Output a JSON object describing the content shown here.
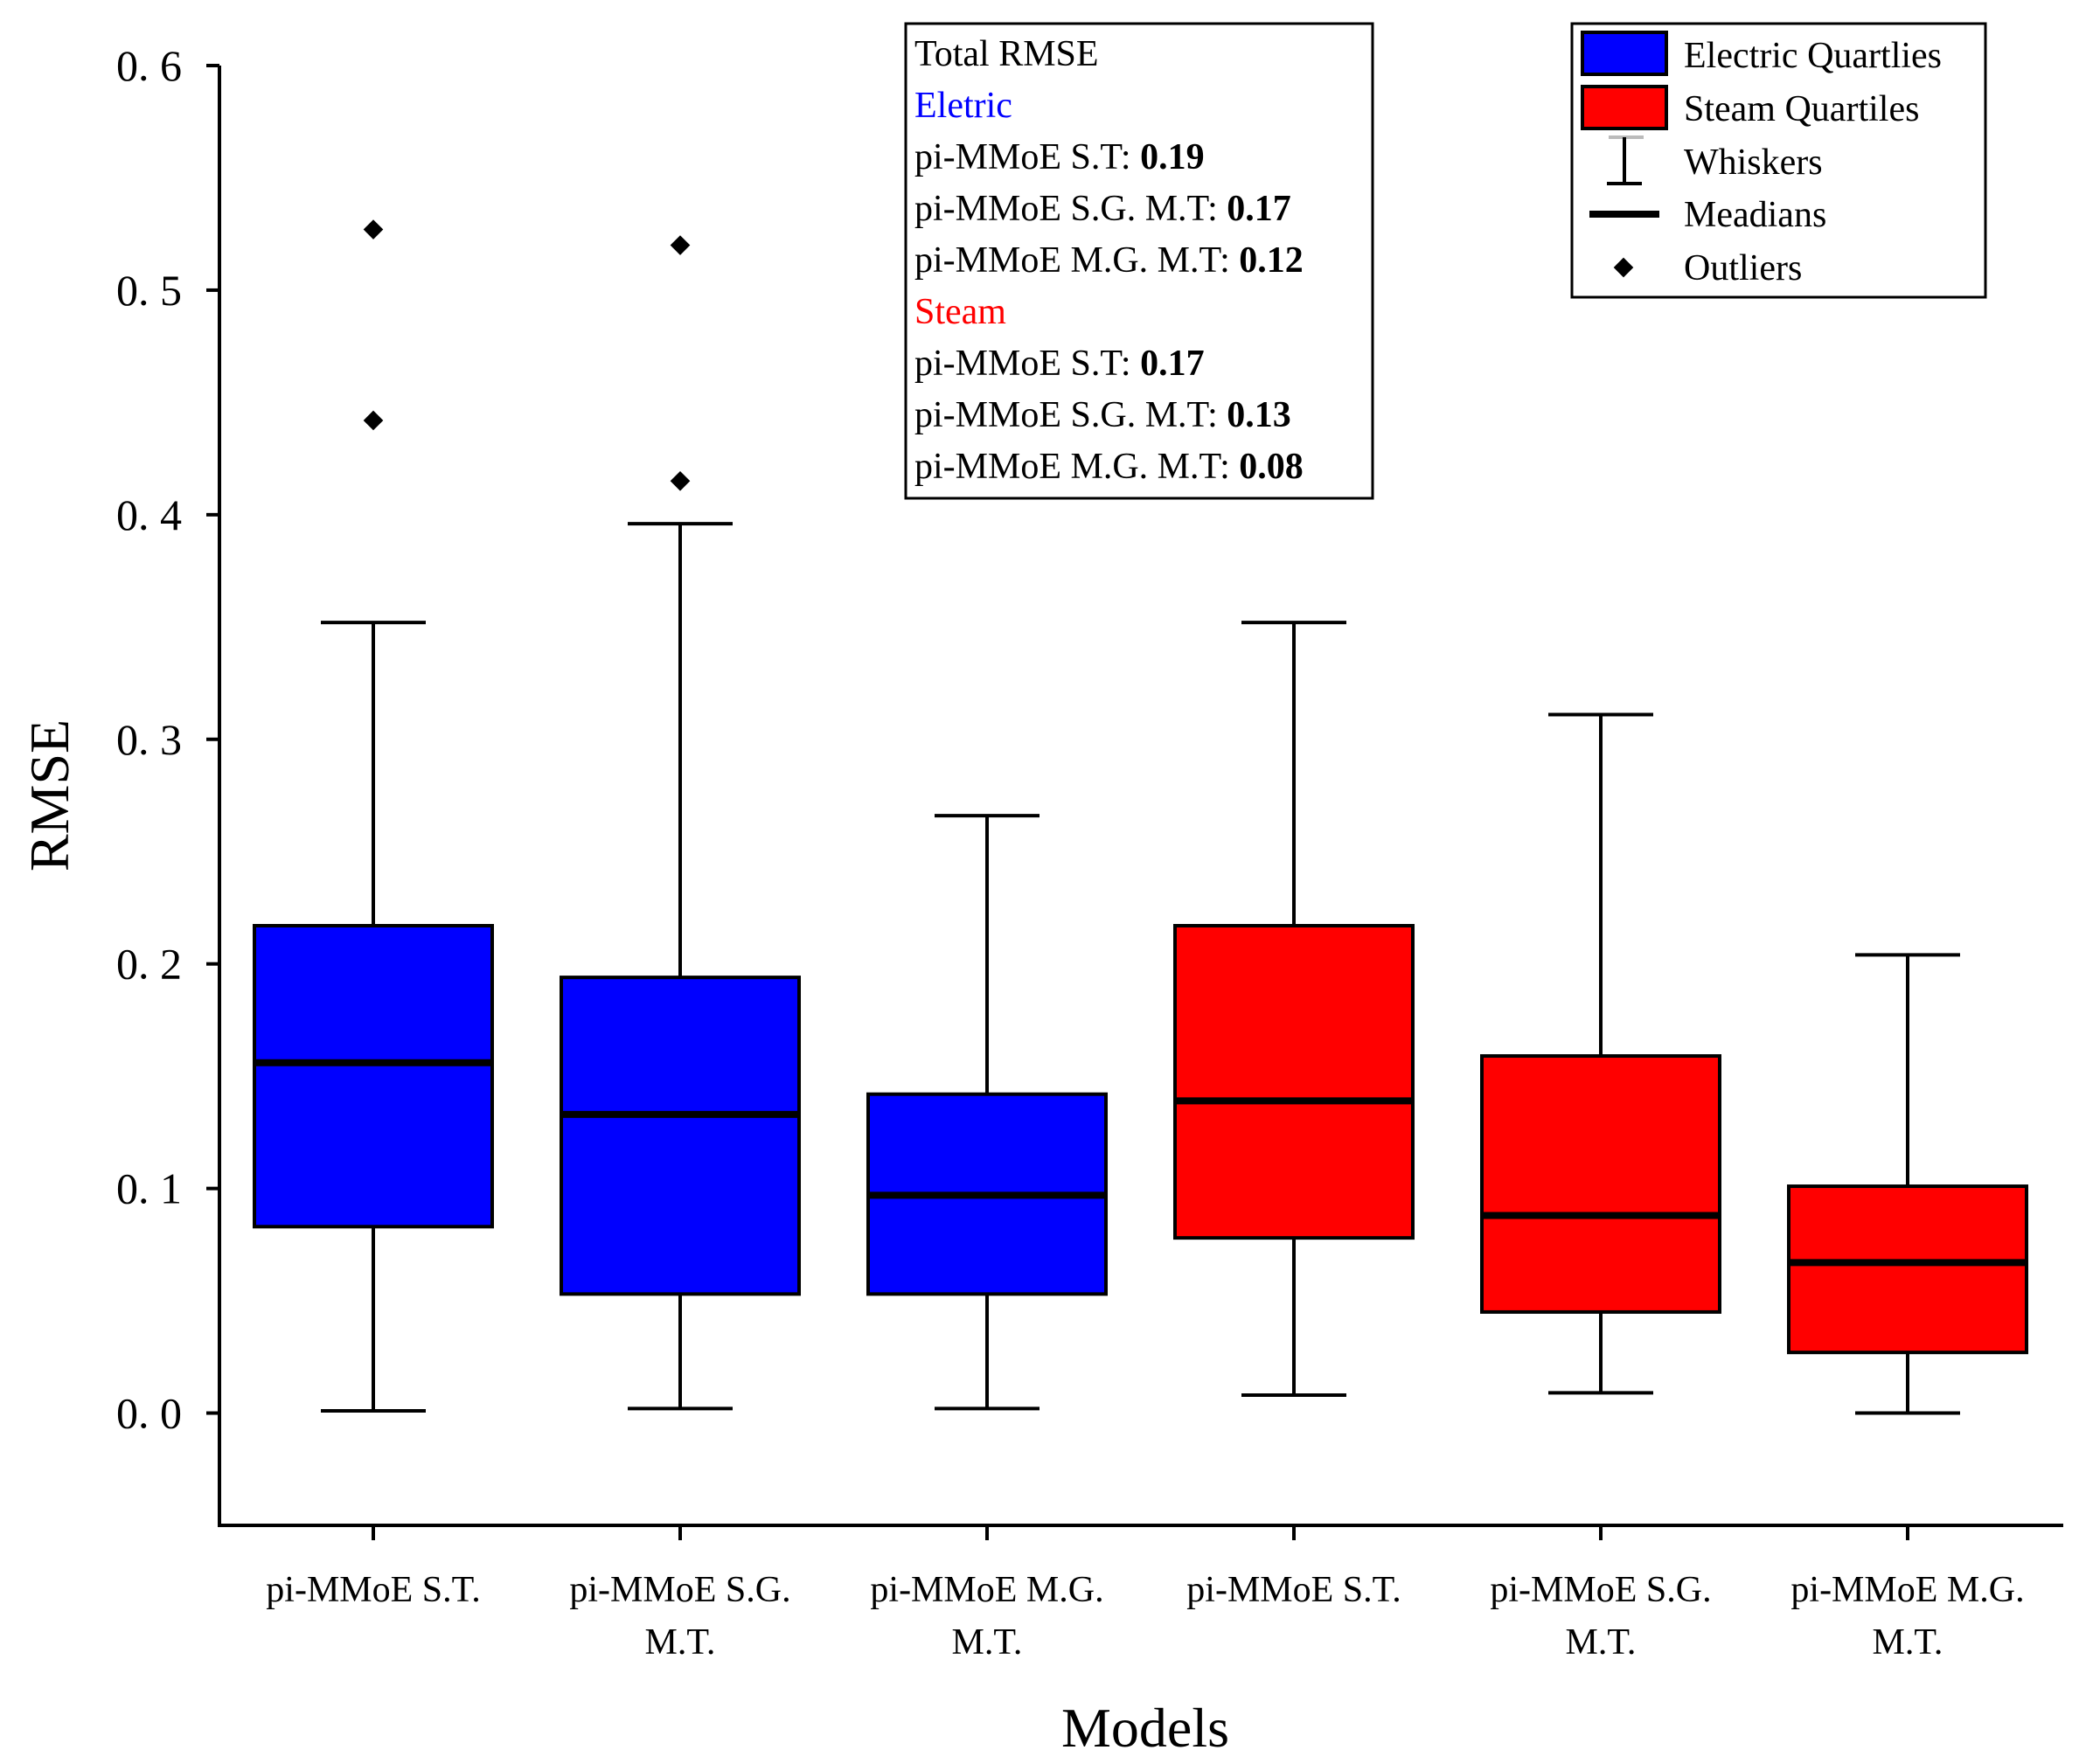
{
  "chart_data": {
    "type": "boxplot",
    "xlabel": "Models",
    "ylabel": "RMSE",
    "ylim": [
      -0.05,
      0.6
    ],
    "yticks": [
      0.0,
      0.1,
      0.2,
      0.3,
      0.4,
      0.5,
      0.6
    ],
    "ytick_labels": [
      "0. 0",
      "0. 1",
      "0. 2",
      "0. 3",
      "0. 4",
      "0. 5",
      "0. 6"
    ],
    "categories": [
      [
        "pi-MMoE S.T."
      ],
      [
        "pi-MMoE S.G.",
        "M.T."
      ],
      [
        "pi-MMoE M.G.",
        "M.T."
      ],
      [
        "pi-MMoE S.T."
      ],
      [
        "pi-MMoE S.G.",
        "M.T."
      ],
      [
        "pi-MMoE M.G.",
        "M.T."
      ]
    ],
    "boxes": [
      {
        "group": "Electric",
        "whisker_low": 0.001,
        "q1": 0.083,
        "median": 0.156,
        "q3": 0.217,
        "whisker_high": 0.352,
        "outliers": [
          0.442,
          0.527
        ]
      },
      {
        "group": "Electric",
        "whisker_low": 0.002,
        "q1": 0.053,
        "median": 0.133,
        "q3": 0.194,
        "whisker_high": 0.396,
        "outliers": [
          0.415,
          0.52
        ]
      },
      {
        "group": "Electric",
        "whisker_low": 0.002,
        "q1": 0.053,
        "median": 0.097,
        "q3": 0.142,
        "whisker_high": 0.266,
        "outliers": []
      },
      {
        "group": "Steam",
        "whisker_low": 0.008,
        "q1": 0.078,
        "median": 0.139,
        "q3": 0.217,
        "whisker_high": 0.352,
        "outliers": []
      },
      {
        "group": "Steam",
        "whisker_low": 0.009,
        "q1": 0.045,
        "median": 0.088,
        "q3": 0.159,
        "whisker_high": 0.311,
        "outliers": []
      },
      {
        "group": "Steam",
        "whisker_low": 0.0,
        "q1": 0.027,
        "median": 0.067,
        "q3": 0.101,
        "whisker_high": 0.204,
        "outliers": []
      }
    ],
    "colors": {
      "Electric": "#0000ff",
      "Steam": "#ff0000"
    },
    "legend": {
      "placement": "top-right",
      "entries": [
        "Electric Quartlies",
        "Steam Quartiles",
        "Whiskers",
        "Meadians",
        "Outliers"
      ]
    },
    "annotation": {
      "title": "Total RMSE",
      "sections": [
        {
          "label": "Eletric",
          "color": "#0000ff",
          "rows": [
            {
              "name": "pi-MMoE S.T: ",
              "value": "0.19"
            },
            {
              "name": "pi-MMoE S.G. M.T: ",
              "value": "0.17"
            },
            {
              "name": "pi-MMoE M.G. M.T: ",
              "value": "0.12"
            }
          ]
        },
        {
          "label": "Steam",
          "color": "#ff0000",
          "rows": [
            {
              "name": "pi-MMoE S.T: ",
              "value": "0.17"
            },
            {
              "name": "pi-MMoE S.G. M.T: ",
              "value": "0.13"
            },
            {
              "name": "pi-MMoE M.G. M.T: ",
              "value": "0.08"
            }
          ]
        }
      ]
    }
  }
}
